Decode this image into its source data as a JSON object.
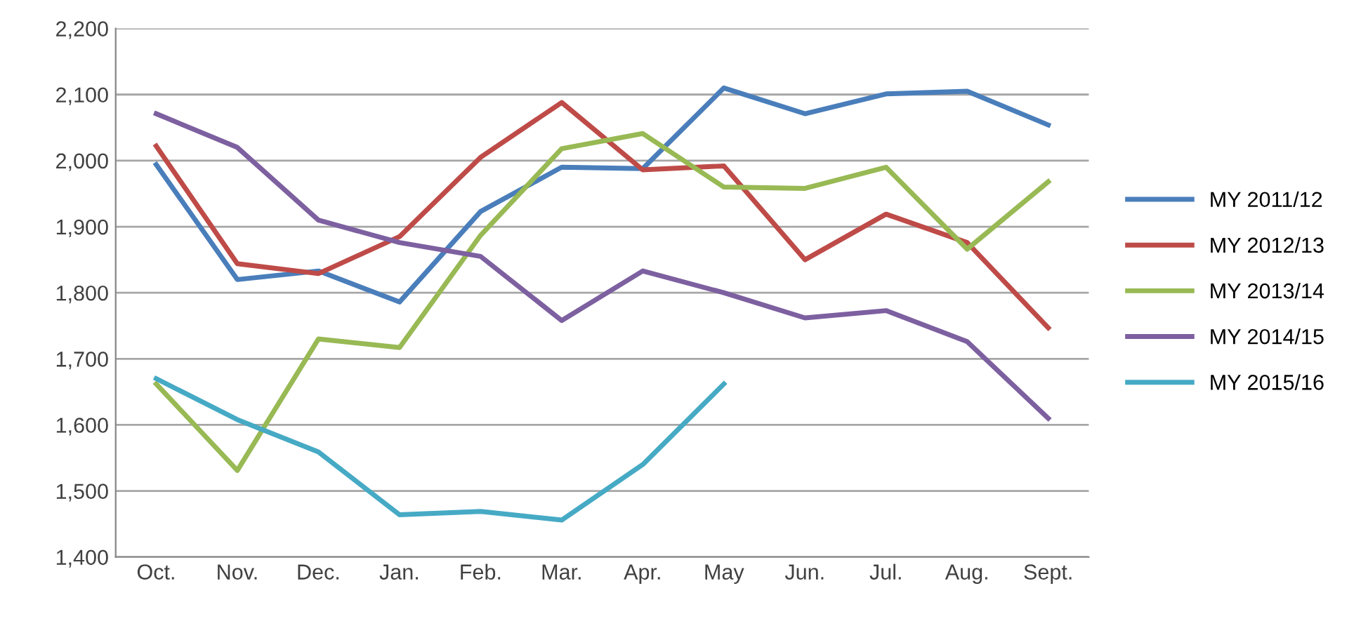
{
  "chart_data": {
    "type": "line",
    "categories": [
      "Oct.",
      "Nov.",
      "Dec.",
      "Jan.",
      "Feb.",
      "Mar.",
      "Apr.",
      "May",
      "Jun.",
      "Jul.",
      "Aug.",
      "Sept."
    ],
    "series": [
      {
        "name": "MY 2011/12",
        "color": "#4a7ebb",
        "values": [
          1994,
          1820,
          1833,
          1786,
          1923,
          1990,
          1988,
          2110,
          2071,
          2101,
          2105,
          2054
        ]
      },
      {
        "name": "MY 2012/13",
        "color": "#be4b48",
        "values": [
          2022,
          1844,
          1829,
          1885,
          2005,
          2088,
          1986,
          1992,
          1850,
          1919,
          1876,
          1747
        ]
      },
      {
        "name": "MY 2013/14",
        "color": "#98b954",
        "values": [
          1662,
          1531,
          1730,
          1717,
          1887,
          2018,
          2041,
          1960,
          1958,
          1990,
          1866,
          1968
        ]
      },
      {
        "name": "MY 2014/15",
        "color": "#7d60a0",
        "values": [
          2071,
          2020,
          1910,
          1876,
          1855,
          1758,
          1833,
          1800,
          1762,
          1773,
          1726,
          1610
        ]
      },
      {
        "name": "MY 2015/16",
        "color": "#46aac5",
        "values": [
          1670,
          1608,
          1559,
          1464,
          1469,
          1456,
          1540,
          1662,
          null,
          null,
          null,
          null
        ]
      }
    ],
    "ylim": [
      1400,
      2200
    ],
    "yticks": [
      {
        "value": 1400,
        "label": "1,400"
      },
      {
        "value": 1500,
        "label": "1,500"
      },
      {
        "value": 1600,
        "label": "1,600"
      },
      {
        "value": 1700,
        "label": "1,700"
      },
      {
        "value": 1800,
        "label": "1,800"
      },
      {
        "value": 1900,
        "label": "1,900"
      },
      {
        "value": 2000,
        "label": "2,000"
      },
      {
        "value": 2100,
        "label": "2,100"
      },
      {
        "value": 2200,
        "label": "2,200"
      }
    ],
    "grid": "y",
    "legend": "right",
    "marker": "none",
    "line_style": "solid"
  }
}
